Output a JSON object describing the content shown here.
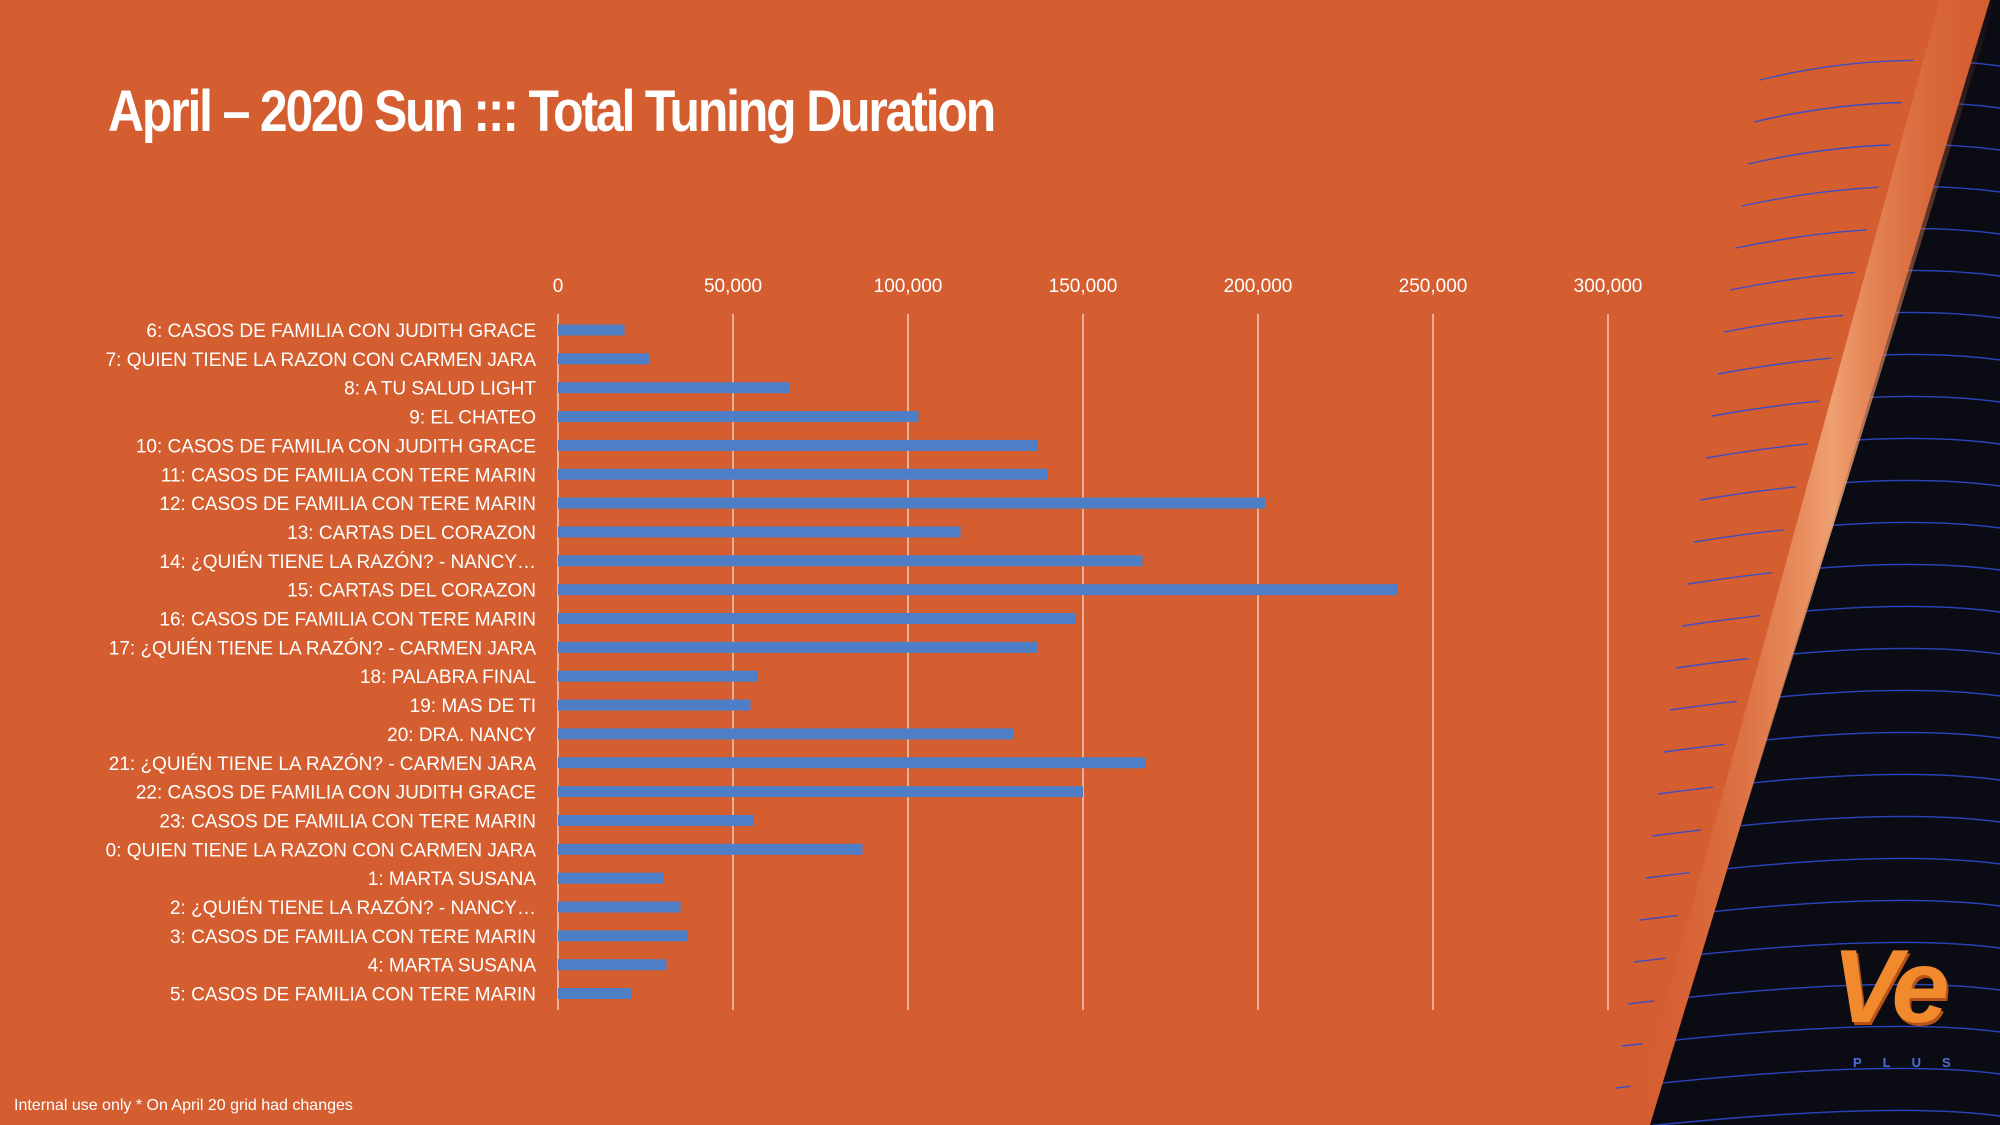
{
  "slide": {
    "title": "April – 2020 Sun ::: Total Tuning Duration",
    "footnote": "Internal use only * On April 20 grid had changes",
    "logo": {
      "text": "Ve",
      "subtext": "PLUS"
    },
    "colors": {
      "background": "#d55e31",
      "bar": "#4e7fc6",
      "text": "#ffffff",
      "corner": "#0b0b14",
      "corner_lines": "#2f4bd1"
    }
  },
  "chart_data": {
    "type": "bar",
    "orientation": "horizontal",
    "title": "",
    "xlabel": "",
    "ylabel": "",
    "xlim": [
      0,
      300000
    ],
    "xticks": [
      0,
      50000,
      100000,
      150000,
      200000,
      250000,
      300000
    ],
    "xtick_labels": [
      "0",
      "50,000",
      "100,000",
      "150,000",
      "200,000",
      "250,000",
      "300,000"
    ],
    "x_axis_position": "top",
    "grid": true,
    "legend": "none",
    "categories": [
      "6: CASOS DE FAMILIA CON JUDITH GRACE",
      "7: QUIEN TIENE LA RAZON CON CARMEN JARA",
      "8: A TU SALUD LIGHT",
      "9: EL CHATEO",
      "10: CASOS DE FAMILIA CON JUDITH GRACE",
      "11: CASOS DE FAMILIA CON TERE MARIN",
      "12: CASOS DE FAMILIA CON TERE MARIN",
      "13: CARTAS DEL CORAZON",
      "14: ¿QUIÉN TIENE LA RAZÓN? - NANCY…",
      "15: CARTAS DEL CORAZON",
      "16: CASOS DE FAMILIA CON TERE MARIN",
      "17: ¿QUIÉN TIENE LA RAZÓN? - CARMEN JARA",
      "18: PALABRA FINAL",
      "19: MAS DE TI",
      "20: DRA. NANCY",
      "21: ¿QUIÉN TIENE LA RAZÓN? - CARMEN JARA",
      "22: CASOS DE FAMILIA CON JUDITH GRACE",
      "23: CASOS DE FAMILIA CON TERE MARIN",
      "0: QUIEN TIENE LA RAZON CON CARMEN JARA",
      "1: MARTA SUSANA",
      "2: ¿QUIÉN TIENE LA RAZÓN? - NANCY…",
      "3: CASOS DE FAMILIA CON TERE MARIN",
      "4: MARTA SUSANA",
      "5: CASOS DE FAMILIA CON TERE MARIN"
    ],
    "values": [
      19000,
      26000,
      66000,
      103000,
      137000,
      140000,
      202000,
      115000,
      167000,
      240000,
      148000,
      137000,
      57000,
      55000,
      130000,
      168000,
      150000,
      56000,
      87000,
      30000,
      35000,
      37000,
      31000,
      21000
    ]
  }
}
